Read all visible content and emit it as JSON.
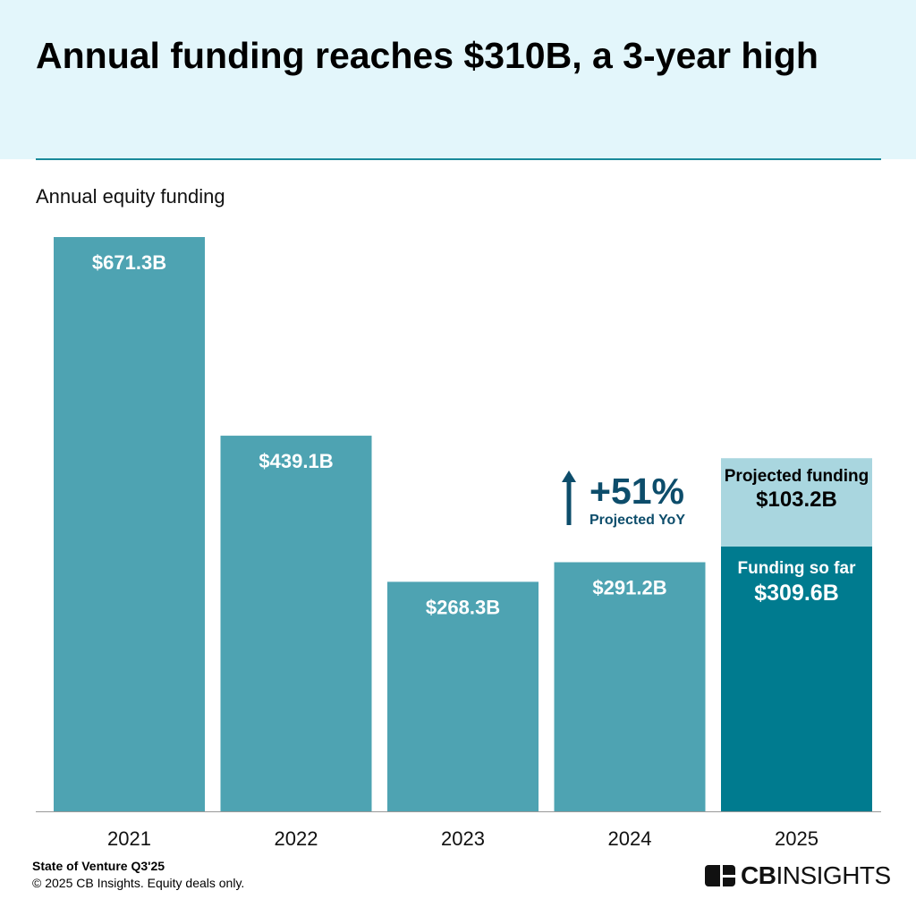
{
  "title": "Annual funding reaches $310B, a 3-year high",
  "subtitle": "Annual equity funding",
  "footer": {
    "source": "State of Venture Q3'25",
    "note": "© 2025 CB Insights. Equity deals only."
  },
  "logo": {
    "bold": "CB",
    "rest": "INSIGHTS"
  },
  "colors": {
    "bar": "#4ea3b2",
    "so_far": "#007b8f",
    "projected": "#a9d6df",
    "callout": "#0d4d6b"
  },
  "callout": {
    "value": "+51%",
    "label": "Projected YoY"
  },
  "chart_data": {
    "type": "bar",
    "title": "Annual equity funding",
    "xlabel": "",
    "ylabel": "",
    "ylim": [
      0,
      671.3
    ],
    "categories": [
      "2021",
      "2022",
      "2023",
      "2024",
      "2025"
    ],
    "values": [
      671.3,
      439.1,
      268.3,
      291.2,
      309.6
    ],
    "data_labels": [
      "$671.3B",
      "$439.1B",
      "$268.3B",
      "$291.2B",
      "$309.6B"
    ],
    "projected": {
      "category": "2025",
      "value": 103.2,
      "label": "$103.2B",
      "caption": "Projected funding"
    },
    "so_far_caption": "Funding so far"
  }
}
